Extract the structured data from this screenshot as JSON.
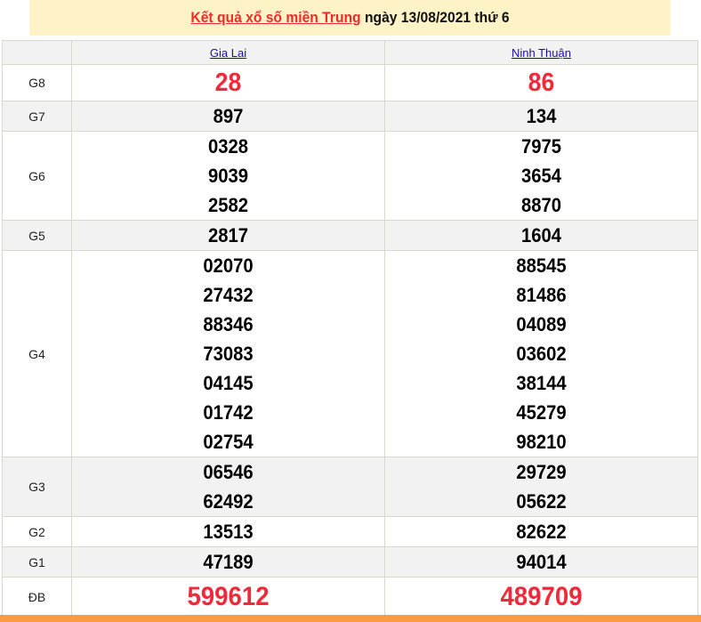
{
  "title": {
    "link": "Kết quả xổ số miền Trung",
    "rest": " ngày 13/08/2021 thứ 6"
  },
  "provinces": [
    "Gia Lai",
    "Ninh Thuận"
  ],
  "rows": [
    {
      "label": "G8",
      "style": "big",
      "values": [
        [
          "28"
        ],
        [
          "86"
        ]
      ]
    },
    {
      "label": "G7",
      "style": "num",
      "values": [
        [
          "897"
        ],
        [
          "134"
        ]
      ]
    },
    {
      "label": "G6",
      "style": "num",
      "values": [
        [
          "0328",
          "9039",
          "2582"
        ],
        [
          "7975",
          "3654",
          "8870"
        ]
      ]
    },
    {
      "label": "G5",
      "style": "num",
      "values": [
        [
          "2817"
        ],
        [
          "1604"
        ]
      ]
    },
    {
      "label": "G4",
      "style": "num",
      "values": [
        [
          "02070",
          "27432",
          "88346",
          "73083",
          "04145",
          "01742",
          "02754"
        ],
        [
          "88545",
          "81486",
          "04089",
          "03602",
          "38144",
          "45279",
          "98210"
        ]
      ]
    },
    {
      "label": "G3",
      "style": "num",
      "values": [
        [
          "06546",
          "62492"
        ],
        [
          "29729",
          "05622"
        ]
      ]
    },
    {
      "label": "G2",
      "style": "num",
      "values": [
        [
          "13513"
        ],
        [
          "82622"
        ]
      ]
    },
    {
      "label": "G1",
      "style": "num",
      "values": [
        [
          "47189"
        ],
        [
          "94014"
        ]
      ]
    },
    {
      "label": "ĐB",
      "style": "huge",
      "values": [
        [
          "599612"
        ],
        [
          "489709"
        ]
      ]
    }
  ],
  "colors": {
    "accent": "#ee2b3a",
    "header_bg": "#fdf3c6",
    "footer_bar": "#fb9c44"
  }
}
